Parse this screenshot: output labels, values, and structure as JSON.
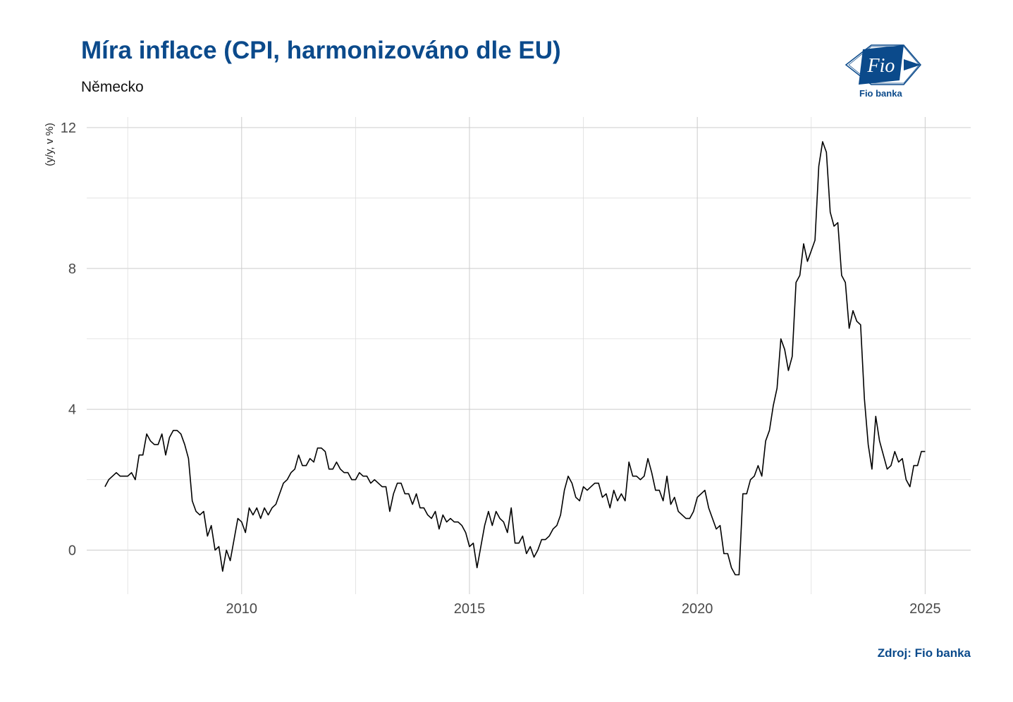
{
  "header": {
    "title": "Míra inflace (CPI, harmonizováno dle EU)",
    "subtitle": "Německo"
  },
  "logo": {
    "mark_text": "Fio",
    "caption": "Fio banka",
    "icon": "fio-logo-icon"
  },
  "footer": {
    "source": "Zdroj: Fio banka"
  },
  "colors": {
    "title": "#0b4a8b",
    "line": "#000000",
    "grid": "#cccccc"
  },
  "chart_data": {
    "type": "line",
    "title": "Míra inflace (CPI, harmonizováno dle EU)",
    "subtitle": "Německo",
    "xlabel": "",
    "ylabel": "(y/y, v %)",
    "xlim": [
      2006.6,
      2026.0
    ],
    "ylim": [
      -1.25,
      12.3
    ],
    "x_ticks": [
      2010,
      2015,
      2020,
      2025
    ],
    "y_ticks": [
      0,
      4,
      8,
      12
    ],
    "grid": true,
    "legend": "none",
    "series": [
      {
        "start": "2007-01",
        "frequency": "monthly",
        "values": [
          1.8,
          2.0,
          2.1,
          2.2,
          2.1,
          2.1,
          2.1,
          2.2,
          2.0,
          2.7,
          2.7,
          3.3,
          3.1,
          3.0,
          3.0,
          3.3,
          2.7,
          3.2,
          3.4,
          3.4,
          3.3,
          3.0,
          2.6,
          1.4,
          1.1,
          1.0,
          1.1,
          0.4,
          0.7,
          0.0,
          0.1,
          -0.6,
          0.0,
          -0.3,
          0.3,
          0.9,
          0.8,
          0.5,
          1.2,
          1.0,
          1.2,
          0.9,
          1.2,
          1.0,
          1.2,
          1.3,
          1.6,
          1.9,
          2.0,
          2.2,
          2.3,
          2.7,
          2.4,
          2.4,
          2.6,
          2.5,
          2.9,
          2.9,
          2.8,
          2.3,
          2.3,
          2.5,
          2.3,
          2.2,
          2.2,
          2.0,
          2.0,
          2.2,
          2.1,
          2.1,
          1.9,
          2.0,
          1.9,
          1.8,
          1.8,
          1.1,
          1.6,
          1.9,
          1.9,
          1.6,
          1.6,
          1.3,
          1.6,
          1.2,
          1.2,
          1.0,
          0.9,
          1.1,
          0.6,
          1.0,
          0.8,
          0.9,
          0.8,
          0.8,
          0.7,
          0.5,
          0.1,
          0.2,
          -0.5,
          0.1,
          0.7,
          1.1,
          0.7,
          1.1,
          0.9,
          0.8,
          0.5,
          1.2,
          0.2,
          0.2,
          0.4,
          -0.1,
          0.1,
          -0.2,
          0.0,
          0.3,
          0.3,
          0.4,
          0.6,
          0.7,
          1.0,
          1.7,
          2.1,
          1.9,
          1.5,
          1.4,
          1.8,
          1.7,
          1.8,
          1.9,
          1.9,
          1.5,
          1.6,
          1.2,
          1.7,
          1.4,
          1.6,
          1.4,
          2.5,
          2.1,
          2.1,
          2.0,
          2.1,
          2.6,
          2.2,
          1.7,
          1.7,
          1.4,
          2.1,
          1.3,
          1.5,
          1.1,
          1.0,
          0.9,
          0.9,
          1.1,
          1.5,
          1.6,
          1.7,
          1.2,
          0.9,
          0.6,
          0.7,
          -0.1,
          -0.1,
          -0.5,
          -0.7,
          -0.7,
          1.6,
          1.6,
          2.0,
          2.1,
          2.4,
          2.1,
          3.1,
          3.4,
          4.1,
          4.6,
          6.0,
          5.7,
          5.1,
          5.5,
          7.6,
          7.8,
          8.7,
          8.2,
          8.5,
          8.8,
          10.9,
          11.6,
          11.3,
          9.6,
          9.2,
          9.3,
          7.8,
          7.6,
          6.3,
          6.8,
          6.5,
          6.4,
          4.3,
          3.0,
          2.3,
          3.8,
          3.1,
          2.7,
          2.3,
          2.4,
          2.8,
          2.5,
          2.6,
          2.0,
          1.8,
          2.4,
          2.4,
          2.8,
          2.8
        ]
      }
    ]
  }
}
